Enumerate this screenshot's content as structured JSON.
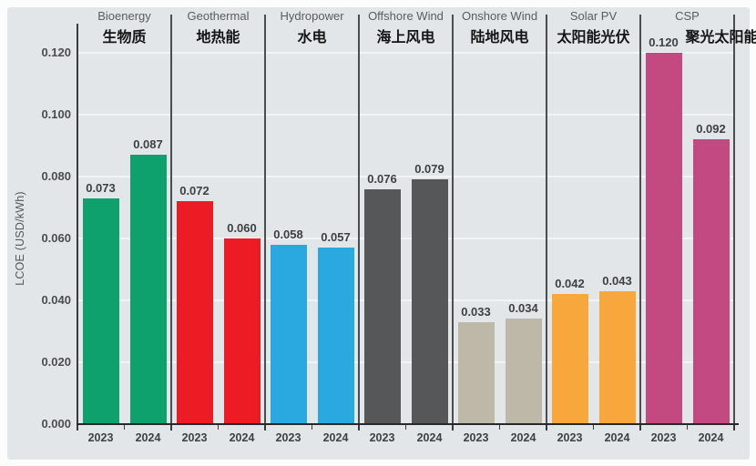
{
  "chart_data": {
    "type": "bar",
    "title": "",
    "ylabel": "LCOE (USD/kWh)",
    "ylim": [
      0,
      0.134
    ],
    "grid": true,
    "legend": "none",
    "y_ticks": [
      "0.000",
      "0.020",
      "0.040",
      "0.060",
      "0.080",
      "0.100",
      "0.120"
    ],
    "y_tick_values": [
      0,
      0.02,
      0.04,
      0.06,
      0.08,
      0.1,
      0.12
    ],
    "categories": [
      "2023",
      "2024"
    ],
    "groups": [
      {
        "label_en": "Bioenergy",
        "label_zh": "生物质",
        "color": "#0ea06d",
        "values": [
          0.073,
          0.087
        ],
        "value_labels": [
          "0.073",
          "0.087"
        ]
      },
      {
        "label_en": "Geothermal",
        "label_zh": "地热能",
        "color": "#ec1c24",
        "values": [
          0.072,
          0.06
        ],
        "value_labels": [
          "0.072",
          "0.060"
        ]
      },
      {
        "label_en": "Hydropower",
        "label_zh": "水电",
        "color": "#2aa9e0",
        "values": [
          0.058,
          0.057
        ],
        "value_labels": [
          "0.058",
          "0.057"
        ]
      },
      {
        "label_en": "Offshore Wind",
        "label_zh": "海上风电",
        "color": "#565759",
        "values": [
          0.076,
          0.079
        ],
        "value_labels": [
          "0.076",
          "0.079"
        ]
      },
      {
        "label_en": "Onshore Wind",
        "label_zh": "陆地风电",
        "color": "#bdb8a7",
        "values": [
          0.033,
          0.034
        ],
        "value_labels": [
          "0.033",
          "0.034"
        ]
      },
      {
        "label_en": "Solar PV",
        "label_zh": "太阳能光伏",
        "color": "#f8a73d",
        "values": [
          0.042,
          0.043
        ],
        "value_labels": [
          "0.042",
          "0.043"
        ]
      },
      {
        "label_en": "CSP",
        "label_zh": "聚光太阳能",
        "color": "#c34a81",
        "values": [
          0.12,
          0.092
        ],
        "value_labels": [
          "0.120",
          "0.092"
        ]
      }
    ],
    "colors": {
      "panel_bg": "#e3e6e8",
      "gridline": "#f2f4f5",
      "axis_line": "#27282a",
      "separator": "#4c4d4f",
      "tick_text": "#4b4c4e",
      "value_text": "#3e3f41",
      "header_en_text": "#5a5b5d",
      "header_zh_text": "#141414"
    }
  }
}
